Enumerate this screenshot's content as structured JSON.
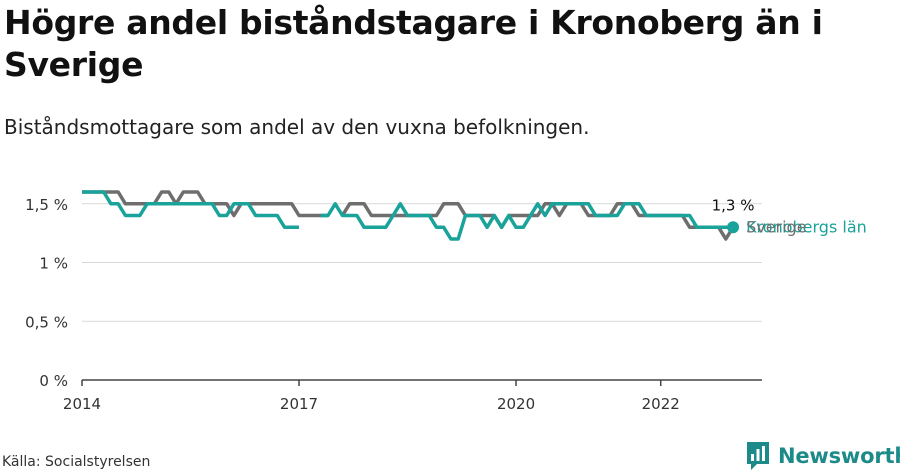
{
  "header": {
    "title": "Högre andel biståndstagare i Kronoberg än i Sverige",
    "subtitle": "Biståndsmottagare som andel av den vuxna befolkningen."
  },
  "footer": {
    "source": "Källa: Socialstyrelsen",
    "brand": "Newsworthy"
  },
  "colors": {
    "sverige": "#6e6e6e",
    "kronoberg": "#1aa39a",
    "brand": "#1d8a8a"
  },
  "chart_data": {
    "type": "line",
    "title": "",
    "xlabel": "",
    "ylabel": "",
    "ylim": [
      0,
      1.6
    ],
    "xlim": [
      2014,
      2023.4
    ],
    "x_ticks": [
      2014,
      2017,
      2020,
      2022
    ],
    "x_tick_labels": [
      "2014",
      "2017",
      "2020",
      "2022"
    ],
    "y_ticks": [
      0,
      0.5,
      1,
      1.5
    ],
    "y_tick_labels": [
      "0 %",
      "0,5 %",
      "1 %",
      "1,5 %"
    ],
    "grid": true,
    "end_value_label": "1,3 %",
    "series": [
      {
        "name": "Sverige",
        "color": "#6e6e6e",
        "points": [
          [
            2014.0,
            1.6
          ],
          [
            2014.5,
            1.6
          ],
          [
            2014.6,
            1.5
          ],
          [
            2015.0,
            1.5
          ],
          [
            2015.1,
            1.6
          ],
          [
            2015.2,
            1.6
          ],
          [
            2015.3,
            1.5
          ],
          [
            2015.4,
            1.6
          ],
          [
            2015.6,
            1.6
          ],
          [
            2015.7,
            1.5
          ],
          [
            2016.0,
            1.5
          ],
          [
            2016.1,
            1.4
          ],
          [
            2016.2,
            1.5
          ],
          [
            2016.9,
            1.5
          ],
          [
            2017.0,
            1.4
          ],
          [
            2017.4,
            1.4
          ],
          null,
          [
            2017.6,
            1.4
          ],
          [
            2017.7,
            1.5
          ],
          [
            2017.9,
            1.5
          ],
          [
            2018.0,
            1.4
          ],
          [
            2018.9,
            1.4
          ],
          [
            2019.0,
            1.5
          ],
          [
            2019.2,
            1.5
          ],
          [
            2019.3,
            1.4
          ],
          [
            2019.7,
            1.4
          ],
          [
            2019.8,
            1.3
          ],
          [
            2019.9,
            1.4
          ],
          [
            2020.3,
            1.4
          ],
          [
            2020.4,
            1.5
          ],
          [
            2020.5,
            1.5
          ],
          [
            2020.6,
            1.4
          ],
          [
            2020.7,
            1.5
          ],
          [
            2020.9,
            1.5
          ],
          [
            2021.0,
            1.4
          ],
          [
            2021.3,
            1.4
          ],
          [
            2021.4,
            1.5
          ],
          [
            2021.6,
            1.5
          ],
          [
            2021.7,
            1.4
          ],
          [
            2022.3,
            1.4
          ],
          [
            2022.4,
            1.3
          ],
          [
            2022.8,
            1.3
          ],
          [
            2022.9,
            1.2
          ],
          [
            2023.0,
            1.3
          ]
        ]
      },
      {
        "name": "Kronobergs län",
        "color": "#1aa39a",
        "points": [
          [
            2014.0,
            1.6
          ],
          [
            2014.3,
            1.6
          ],
          [
            2014.4,
            1.5
          ],
          [
            2014.5,
            1.5
          ],
          [
            2014.6,
            1.4
          ],
          [
            2014.8,
            1.4
          ],
          [
            2014.9,
            1.5
          ],
          [
            2015.8,
            1.5
          ],
          [
            2015.9,
            1.4
          ],
          [
            2016.0,
            1.4
          ],
          [
            2016.1,
            1.5
          ],
          [
            2016.3,
            1.5
          ],
          [
            2016.4,
            1.4
          ],
          [
            2016.7,
            1.4
          ],
          [
            2016.8,
            1.3
          ],
          [
            2017.0,
            1.3
          ],
          null,
          [
            2017.3,
            1.4
          ],
          [
            2017.4,
            1.4
          ],
          [
            2017.5,
            1.5
          ],
          [
            2017.6,
            1.4
          ],
          [
            2017.8,
            1.4
          ],
          [
            2017.9,
            1.3
          ],
          [
            2018.2,
            1.3
          ],
          [
            2018.3,
            1.4
          ],
          [
            2018.4,
            1.5
          ],
          [
            2018.5,
            1.4
          ],
          [
            2018.8,
            1.4
          ],
          [
            2018.9,
            1.3
          ],
          [
            2019.0,
            1.3
          ],
          [
            2019.1,
            1.2
          ],
          [
            2019.2,
            1.2
          ],
          [
            2019.3,
            1.4
          ],
          [
            2019.4,
            1.4
          ],
          [
            2019.5,
            1.4
          ],
          [
            2019.6,
            1.3
          ],
          [
            2019.7,
            1.4
          ],
          [
            2019.8,
            1.3
          ],
          [
            2019.9,
            1.4
          ],
          [
            2020.0,
            1.3
          ],
          [
            2020.1,
            1.3
          ],
          [
            2020.2,
            1.4
          ],
          [
            2020.3,
            1.5
          ],
          [
            2020.4,
            1.4
          ],
          [
            2020.5,
            1.5
          ],
          [
            2020.6,
            1.5
          ],
          [
            2020.7,
            1.5
          ],
          [
            2020.8,
            1.5
          ],
          [
            2021.0,
            1.5
          ],
          [
            2021.1,
            1.4
          ],
          [
            2021.4,
            1.4
          ],
          [
            2021.5,
            1.5
          ],
          [
            2021.7,
            1.5
          ],
          [
            2021.8,
            1.4
          ],
          [
            2022.4,
            1.4
          ],
          [
            2022.5,
            1.3
          ],
          [
            2023.0,
            1.3
          ]
        ]
      }
    ],
    "end_label": {
      "series": 1,
      "value": 1.3
    }
  }
}
